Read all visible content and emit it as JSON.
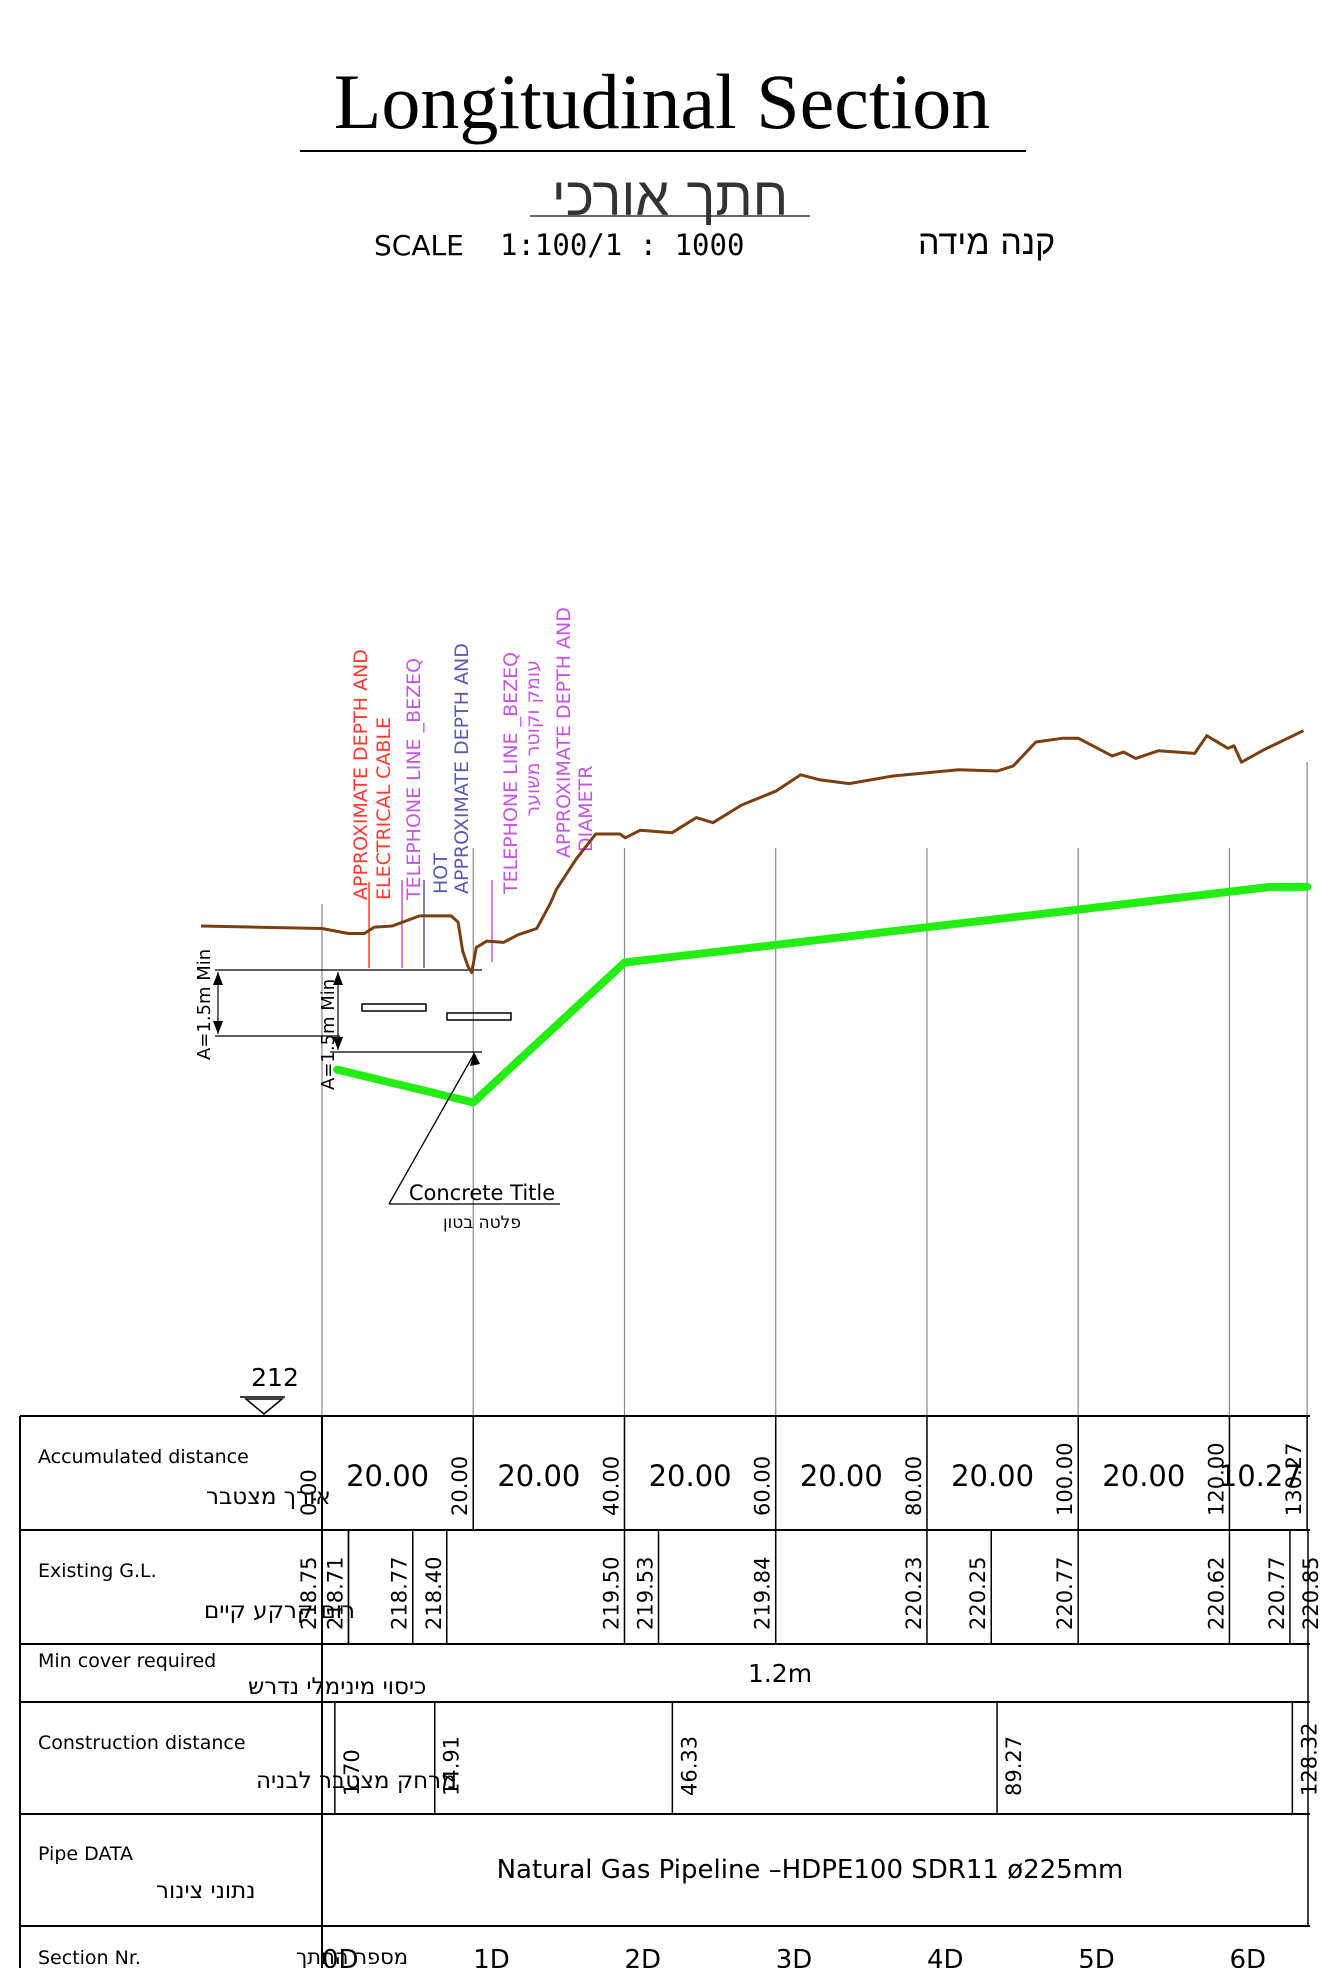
{
  "header": {
    "title": "Longitudinal Section",
    "title_hebrew": "חתך אורכי",
    "scale_prefix": "SCALE",
    "scale_value": "1:100/1 : 1000",
    "scale_hebrew": "קנה מידה"
  },
  "colors": {
    "ground_line": "#7a3f10",
    "pipe_line": "#22ee11",
    "electrical": "#ff3b30",
    "telephone": "#c555e6",
    "hot_line": "#5a5ab0",
    "table_border": "#000000",
    "grid_line": "#888888"
  },
  "annotations": {
    "utility_labels": [
      {
        "text": "APPROXIMATE DEPTH AND",
        "color": "#ff3b30"
      },
      {
        "text": "ELECTRICAL CABLE",
        "color": "#ff3b30"
      },
      {
        "text": "TELEPHONE LINE _BEZEQ",
        "color": "#c555e6"
      },
      {
        "text": "HOT",
        "color": "#5a5ab0"
      },
      {
        "text": "APPROXIMATE DEPTH AND",
        "color": "#5a5ab0"
      },
      {
        "text": "TELEPHONE LINE _BEZEQ",
        "color": "#c555e6"
      },
      {
        "text": "עומק וקוטר משוער",
        "color": "#c555e6"
      },
      {
        "text": "APPROXIMATE DEPTH AND",
        "color": "#c555e6"
      },
      {
        "text": "DIAMETR",
        "color": "#c555e6"
      }
    ],
    "dim_outer": "A=1.5m Min",
    "dim_inner": "A=1.5m Min",
    "concrete_title": "Concrete Title",
    "concrete_title_hebrew": "פלטה בטון",
    "datum_value": "212"
  },
  "table": {
    "rows": [
      {
        "label_en": "Accumulated distance",
        "label_he": "אורך מצטבר"
      },
      {
        "label_en": "Existing G.L.",
        "label_he": "רום קרקע קיים"
      },
      {
        "label_en": "Min cover required",
        "label_he": "כיסוי מינימלי נדרש"
      },
      {
        "label_en": "Construction distance",
        "label_he": "מרחק מצטבר לבניה"
      },
      {
        "label_en": "Pipe DATA",
        "label_he": "נתוני צינור"
      },
      {
        "label_en": "Section Nr.",
        "label_he": "מספר החתך"
      }
    ],
    "accumulated": {
      "stations": [
        "0.00",
        "20.00",
        "40.00",
        "60.00",
        "80.00",
        "100.00",
        "120.00",
        "130.27"
      ],
      "segments": [
        "20.00",
        "20.00",
        "20.00",
        "20.00",
        "20.00",
        "20.00",
        "10.27"
      ]
    },
    "existing_gl": [
      "218.75",
      "218.71",
      "218.77",
      "218.40",
      "219.50",
      "219.53",
      "219.84",
      "220.23",
      "220.25",
      "220.77",
      "220.62",
      "220.77",
      "220.85"
    ],
    "min_cover": "1.2m",
    "construction": [
      "1.70",
      "14.91",
      "46.33",
      "89.27",
      "128.32"
    ],
    "pipe_data": "Natural Gas Pipeline –HDPE100 SDR11 ø225mm",
    "sections": [
      "0D",
      "1D",
      "2D",
      "3D",
      "4D",
      "5D",
      "6D"
    ]
  },
  "chart_data": {
    "type": "line",
    "xlabel": "",
    "ylabel": "",
    "xlim": [
      0,
      130.27
    ],
    "ylim": [
      212,
      222
    ],
    "series": [
      {
        "values": [
          [
            -16,
            218.77
          ],
          [
            0,
            218.75
          ],
          [
            3.5,
            218.71
          ],
          [
            5.6,
            218.71
          ],
          [
            6.9,
            218.76
          ],
          [
            9.3,
            218.77
          ],
          [
            12.9,
            218.85
          ],
          [
            17.1,
            218.85
          ],
          [
            18.0,
            218.8
          ],
          [
            18.6,
            218.57
          ],
          [
            19.3,
            218.45
          ],
          [
            19.8,
            218.4
          ],
          [
            20.4,
            218.6
          ],
          [
            21.8,
            218.65
          ],
          [
            24.0,
            218.64
          ],
          [
            25.9,
            218.7
          ],
          [
            28.4,
            218.75
          ],
          [
            30.2,
            218.95
          ],
          [
            31.0,
            219.06
          ],
          [
            33.6,
            219.3
          ],
          [
            36.2,
            219.5
          ],
          [
            39.4,
            219.5
          ],
          [
            40.1,
            219.47
          ],
          [
            42.1,
            219.53
          ],
          [
            46.3,
            219.51
          ],
          [
            49.5,
            219.63
          ],
          [
            51.7,
            219.59
          ],
          [
            55.5,
            219.73
          ],
          [
            60.0,
            219.84
          ],
          [
            63.3,
            219.97
          ],
          [
            65.8,
            219.93
          ],
          [
            69.7,
            219.9
          ],
          [
            75.5,
            219.96
          ],
          [
            84.2,
            220.01
          ],
          [
            89.3,
            220.0
          ],
          [
            91.4,
            220.04
          ],
          [
            94.4,
            220.23
          ],
          [
            98.0,
            220.26
          ],
          [
            100.0,
            220.26
          ],
          [
            104.5,
            220.12
          ],
          [
            106.0,
            220.15
          ],
          [
            107.6,
            220.1
          ],
          [
            110.6,
            220.16
          ],
          [
            115.4,
            220.14
          ],
          [
            117.0,
            220.28
          ],
          [
            119.8,
            220.18
          ],
          [
            120.6,
            220.2
          ],
          [
            121.6,
            220.07
          ],
          [
            124.6,
            220.17
          ],
          [
            129.8,
            220.32
          ]
        ]
      },
      {
        "values": [
          [
            2.0,
            217.63
          ],
          [
            20.0,
            217.37
          ],
          [
            40.0,
            218.48
          ],
          [
            60.0,
            218.62
          ],
          [
            80.0,
            218.76
          ],
          [
            100.0,
            218.9
          ],
          [
            125.4,
            219.08
          ],
          [
            130.3,
            219.08
          ]
        ]
      }
    ]
  }
}
